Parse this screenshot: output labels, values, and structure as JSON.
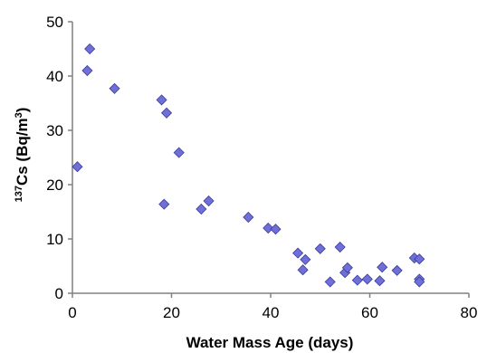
{
  "chart_data": {
    "type": "scatter",
    "xlabel": "Water Mass Age (days)",
    "ylabel": {
      "superscript": "137",
      "text": "Cs (Bq/m",
      "unit_superscript": "3",
      "close": ")"
    },
    "xlim": [
      0,
      80
    ],
    "ylim": [
      0,
      50
    ],
    "xticks": [
      0,
      20,
      40,
      60,
      80
    ],
    "yticks": [
      0,
      10,
      20,
      30,
      40,
      50
    ],
    "grid": false,
    "legend": "none",
    "marker": {
      "shape": "diamond",
      "fill": "#6f6fd8",
      "stroke": "#3b3b9b"
    },
    "points": [
      {
        "x": 1,
        "y": 23.3
      },
      {
        "x": 3,
        "y": 41
      },
      {
        "x": 3.5,
        "y": 45
      },
      {
        "x": 8.5,
        "y": 37.7
      },
      {
        "x": 18,
        "y": 35.6
      },
      {
        "x": 19,
        "y": 33.2
      },
      {
        "x": 18.5,
        "y": 16.4
      },
      {
        "x": 21.5,
        "y": 25.9
      },
      {
        "x": 26,
        "y": 15.5
      },
      {
        "x": 27.5,
        "y": 17
      },
      {
        "x": 35.5,
        "y": 14
      },
      {
        "x": 39.5,
        "y": 12
      },
      {
        "x": 41,
        "y": 11.8
      },
      {
        "x": 45.5,
        "y": 7.4
      },
      {
        "x": 46.5,
        "y": 4.3
      },
      {
        "x": 47,
        "y": 6.2
      },
      {
        "x": 50,
        "y": 8.2
      },
      {
        "x": 52,
        "y": 2.1
      },
      {
        "x": 54,
        "y": 8.5
      },
      {
        "x": 55,
        "y": 3.8
      },
      {
        "x": 55.5,
        "y": 4.7
      },
      {
        "x": 57.5,
        "y": 2.4
      },
      {
        "x": 59.5,
        "y": 2.6
      },
      {
        "x": 62,
        "y": 2.3
      },
      {
        "x": 62.5,
        "y": 4.8
      },
      {
        "x": 65.5,
        "y": 4.2
      },
      {
        "x": 69,
        "y": 6.5
      },
      {
        "x": 70,
        "y": 6.3
      },
      {
        "x": 70,
        "y": 2.6
      },
      {
        "x": 70,
        "y": 2.1
      }
    ]
  }
}
